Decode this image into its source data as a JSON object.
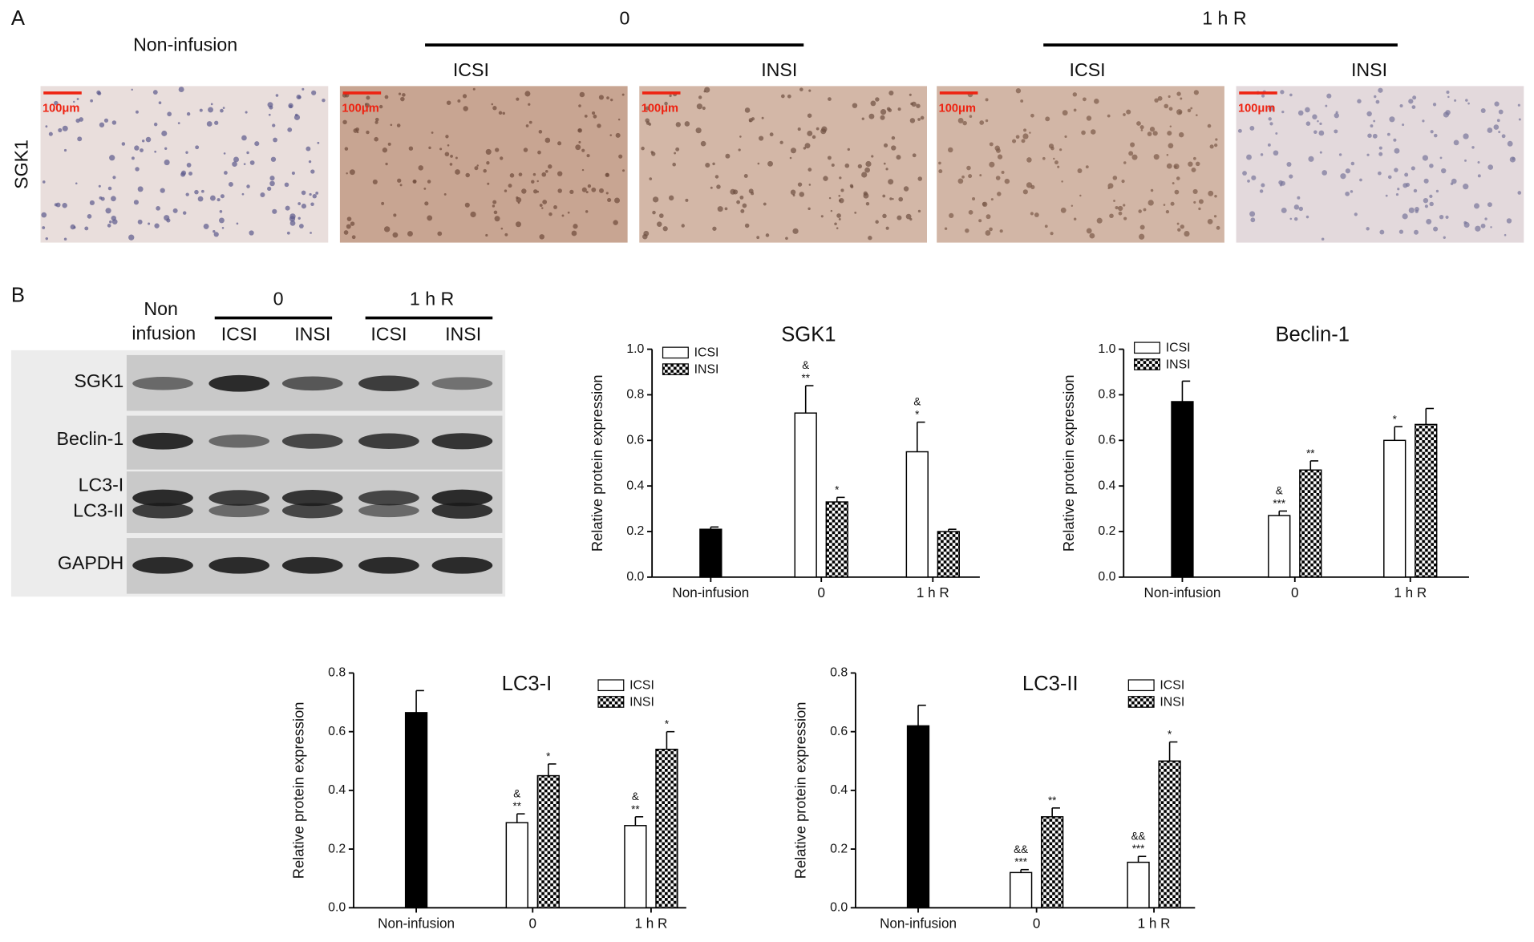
{
  "panel_a": {
    "label": "A",
    "control": "Non-infusion",
    "row_label": "SGK1",
    "scale_bar": "100μm",
    "groups": [
      {
        "label": "0",
        "subgroups": [
          "ICSI",
          "INSI"
        ]
      },
      {
        "label": "1 h R",
        "subgroups": [
          "ICSI",
          "INSI"
        ]
      }
    ]
  },
  "panel_b": {
    "label": "B",
    "lane_header": [
      "Non",
      "infusion"
    ],
    "groups": [
      {
        "label": "0",
        "lanes": [
          "ICSI",
          "INSI"
        ]
      },
      {
        "label": "1 h R",
        "lanes": [
          "ICSI",
          "INSI"
        ]
      }
    ],
    "rows": [
      "SGK1",
      "Beclin-1",
      "LC3-I",
      "LC3-II",
      "GAPDH"
    ]
  },
  "chart_data": [
    {
      "type": "bar",
      "title": "SGK1",
      "y_label": "Relative  protein expression",
      "categories": [
        "Non-infusion",
        "0",
        "1 h R"
      ],
      "ylim": [
        0,
        1
      ],
      "yticks": [
        {
          "value": 0,
          "label": "0.0"
        },
        0.2,
        0.4,
        0.6,
        0.8,
        {
          "value": 1,
          "label": "1.0"
        }
      ],
      "series": [
        {
          "color": "#000000",
          "values": [
            0.21,
            null,
            null
          ],
          "errors": [
            0.01,
            null,
            null
          ]
        },
        {
          "name": "ICSI",
          "color": "#ffffff",
          "values": [
            null,
            0.72,
            0.55
          ],
          "errors": [
            null,
            0.12,
            0.13
          ],
          "annotations": [
            null,
            [
              "&",
              "**"
            ],
            [
              "&",
              "*"
            ]
          ]
        },
        {
          "name": "INSI",
          "color": "#000000",
          "pattern": "checker",
          "values": [
            null,
            0.33,
            0.2
          ],
          "errors": [
            null,
            0.02,
            0.01
          ],
          "annotations": [
            null,
            [
              "*"
            ],
            null
          ]
        }
      ]
    },
    {
      "type": "bar",
      "title": "Beclin-1",
      "y_label": "Relative  protein expression",
      "categories": [
        "Non-infusion",
        "0",
        "1 h R"
      ],
      "ylim": [
        0,
        1
      ],
      "yticks": [
        {
          "value": 0,
          "label": "0.0"
        },
        0.2,
        0.4,
        0.6,
        0.8,
        {
          "value": 1,
          "label": "1.0"
        }
      ],
      "series": [
        {
          "color": "#000000",
          "values": [
            0.77,
            null,
            null
          ],
          "errors": [
            0.09,
            null,
            null
          ]
        },
        {
          "name": "ICSI",
          "color": "#ffffff",
          "values": [
            null,
            0.27,
            0.6
          ],
          "errors": [
            null,
            0.02,
            0.06
          ],
          "annotations": [
            null,
            [
              "&",
              "***"
            ],
            [
              "*"
            ]
          ]
        },
        {
          "name": "INSI",
          "color": "#000000",
          "pattern": "checker",
          "values": [
            null,
            0.47,
            0.67
          ],
          "errors": [
            null,
            0.04,
            0.07
          ],
          "annotations": [
            null,
            [
              "**"
            ],
            null
          ]
        }
      ]
    },
    {
      "type": "bar",
      "title": "LC3-I",
      "y_label": "Relative  protein expression",
      "categories": [
        "Non-infusion",
        "0",
        "1 h R"
      ],
      "ylim": [
        0,
        0.8
      ],
      "yticks": [
        {
          "value": 0,
          "label": "0.0"
        },
        0.2,
        0.4,
        0.6,
        0.8
      ],
      "series": [
        {
          "color": "#000000",
          "values": [
            0.665,
            null,
            null
          ],
          "errors": [
            0.075,
            null,
            null
          ]
        },
        {
          "name": "ICSI",
          "color": "#ffffff",
          "values": [
            null,
            0.29,
            0.28
          ],
          "errors": [
            null,
            0.03,
            0.03
          ],
          "annotations": [
            null,
            [
              "&",
              "**"
            ],
            [
              "&",
              "**"
            ]
          ]
        },
        {
          "name": "INSI",
          "color": "#000000",
          "pattern": "checker",
          "values": [
            null,
            0.45,
            0.54
          ],
          "errors": [
            null,
            0.04,
            0.06
          ],
          "annotations": [
            null,
            [
              "*"
            ],
            [
              "*"
            ]
          ]
        }
      ]
    },
    {
      "type": "bar",
      "title": "LC3-II",
      "y_label": "Relative  protein expression",
      "categories": [
        "Non-infusion",
        "0",
        "1 h R"
      ],
      "ylim": [
        0,
        0.8
      ],
      "yticks": [
        {
          "value": 0,
          "label": "0.0"
        },
        0.2,
        0.4,
        0.6,
        0.8
      ],
      "series": [
        {
          "color": "#000000",
          "values": [
            0.62,
            null,
            null
          ],
          "errors": [
            0.07,
            null,
            null
          ]
        },
        {
          "name": "ICSI",
          "color": "#ffffff",
          "values": [
            null,
            0.12,
            0.155
          ],
          "errors": [
            null,
            0.01,
            0.02
          ],
          "annotations": [
            null,
            [
              "&&",
              "***"
            ],
            [
              "&&",
              "***"
            ]
          ]
        },
        {
          "name": "INSI",
          "color": "#000000",
          "pattern": "checker",
          "values": [
            null,
            0.31,
            0.5
          ],
          "errors": [
            null,
            0.03,
            0.065
          ],
          "annotations": [
            null,
            [
              "**"
            ],
            [
              "*"
            ]
          ]
        }
      ]
    }
  ]
}
